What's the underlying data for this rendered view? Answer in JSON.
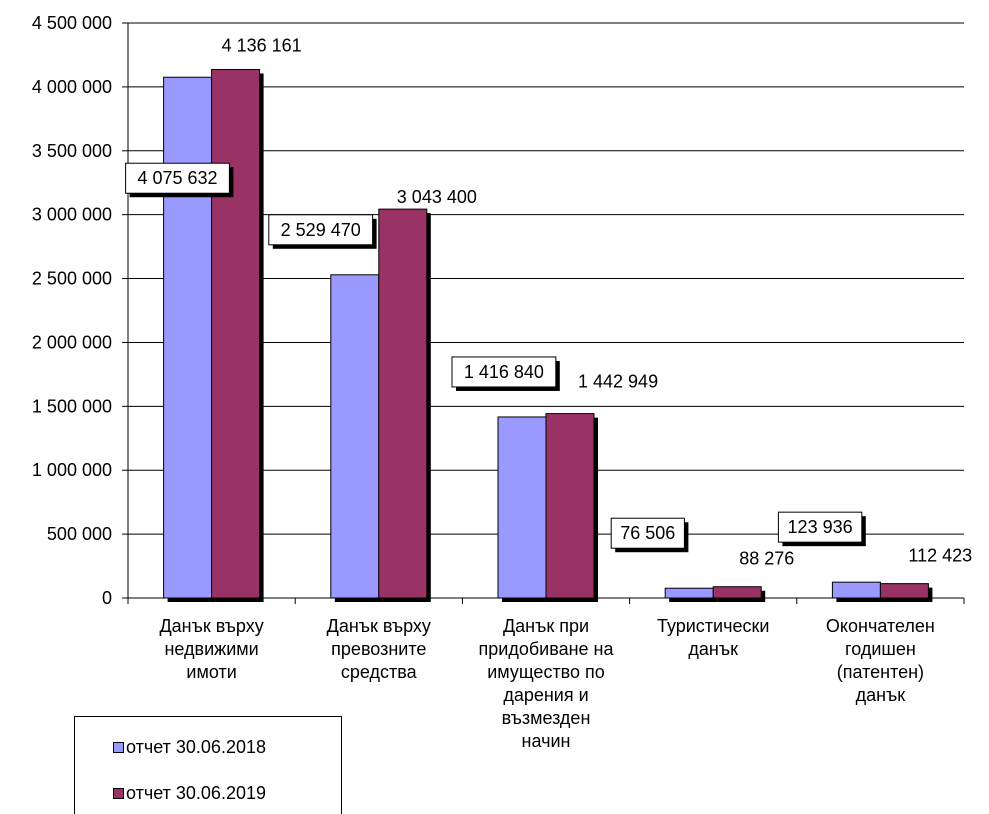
{
  "chart_data": {
    "type": "bar",
    "categories": [
      [
        "Данък върху",
        "недвижими",
        "имоти"
      ],
      [
        "Данък върху",
        "превозните",
        "средства"
      ],
      [
        "Данък при",
        "придобиване на",
        "имущество по",
        "дарения и",
        "възмезден",
        "начин"
      ],
      [
        "Туристически",
        "данък"
      ],
      [
        "Окончателен",
        "годишен",
        "(патентен)",
        "данък"
      ]
    ],
    "series": [
      {
        "name": "отчет 30.06.2018",
        "color": "#9999ff",
        "values": [
          4075632,
          2529470,
          1416840,
          76506,
          123936
        ],
        "labels": [
          "4 075 632",
          "2 529 470",
          "1 416 840",
          "76 506",
          "123 936"
        ]
      },
      {
        "name": "отчет 30.06.2019",
        "color": "#993366",
        "values": [
          4136161,
          3043400,
          1442949,
          88276,
          112423
        ],
        "labels": [
          "4 136 161",
          "3 043 400",
          "1 442 949",
          "88 276",
          "112 423"
        ]
      }
    ],
    "ylim": [
      0,
      4500000
    ],
    "yticks": [
      0,
      500000,
      1000000,
      1500000,
      2000000,
      2500000,
      3000000,
      3500000,
      4000000,
      4500000
    ],
    "ytick_labels": [
      "0",
      "500 000",
      "1 000 000",
      "1 500 000",
      "2 000 000",
      "2 500 000",
      "3 000 000",
      "3 500 000",
      "4 000 000",
      "4 500 000"
    ],
    "grid": true,
    "legend_position": "bottom-left"
  }
}
